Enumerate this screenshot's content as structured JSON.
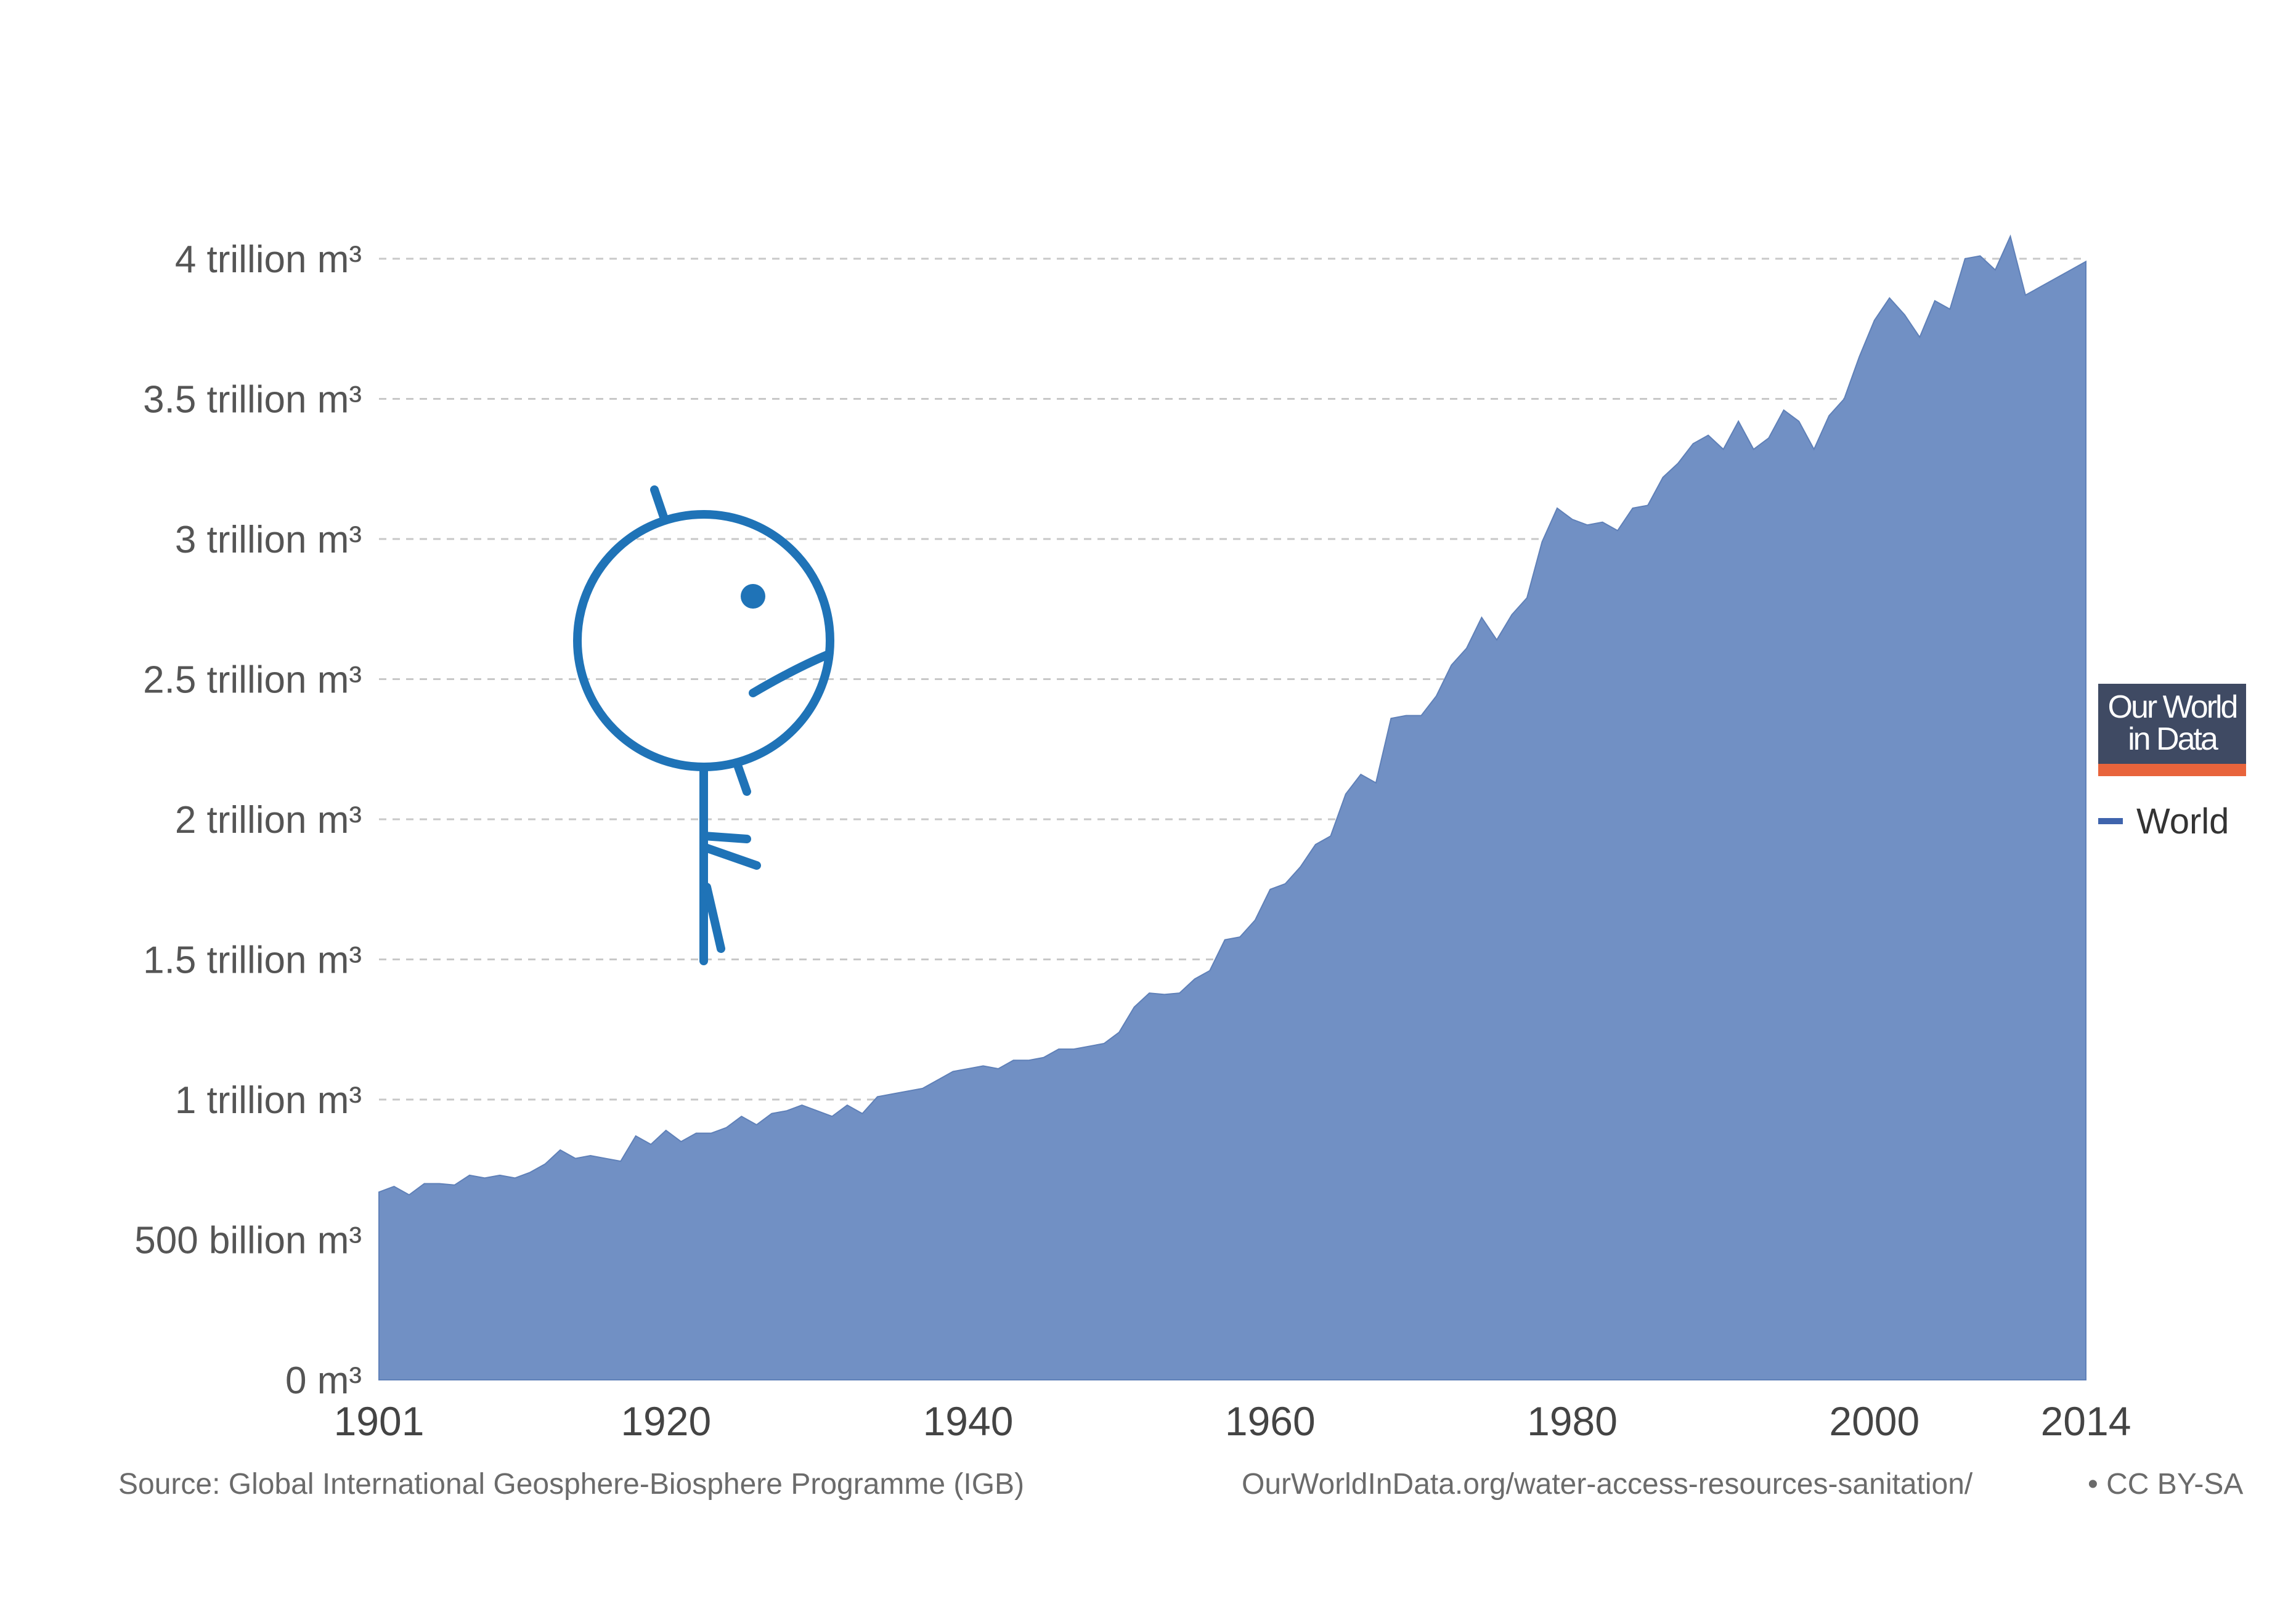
{
  "chart_data": {
    "type": "area",
    "title": "",
    "xlabel": "",
    "ylabel": "",
    "ylim": [
      0,
      4000000000000
    ],
    "xlim": [
      1901,
      2014
    ],
    "y_ticks": [
      {
        "value": 0,
        "label": "0 m³"
      },
      {
        "value": 500000000000,
        "label": "500 billion m³"
      },
      {
        "value": 1000000000000,
        "label": "1 trillion m³"
      },
      {
        "value": 1500000000000,
        "label": "1.5 trillion m³"
      },
      {
        "value": 2000000000000,
        "label": "2 trillion m³"
      },
      {
        "value": 2500000000000,
        "label": "2.5 trillion m³"
      },
      {
        "value": 3000000000000,
        "label": "3 trillion m³"
      },
      {
        "value": 3500000000000,
        "label": "3.5 trillion m³"
      },
      {
        "value": 4000000000000,
        "label": "4 trillion m³"
      }
    ],
    "x_ticks": [
      {
        "value": 1901,
        "label": "1901"
      },
      {
        "value": 1920,
        "label": "1920"
      },
      {
        "value": 1940,
        "label": "1940"
      },
      {
        "value": 1960,
        "label": "1960"
      },
      {
        "value": 1980,
        "label": "1980"
      },
      {
        "value": 2000,
        "label": "2000"
      },
      {
        "value": 2014,
        "label": "2014"
      }
    ],
    "grid": true,
    "legend_position": "right",
    "color": "#7190c4",
    "series": [
      {
        "name": "World",
        "x": [
          1901,
          1902,
          1903,
          1904,
          1905,
          1906,
          1907,
          1908,
          1909,
          1910,
          1911,
          1912,
          1913,
          1914,
          1915,
          1916,
          1917,
          1918,
          1919,
          1920,
          1921,
          1922,
          1923,
          1924,
          1925,
          1926,
          1927,
          1928,
          1929,
          1930,
          1931,
          1932,
          1933,
          1934,
          1935,
          1936,
          1937,
          1938,
          1939,
          1940,
          1941,
          1942,
          1943,
          1944,
          1945,
          1946,
          1947,
          1948,
          1949,
          1950,
          1951,
          1952,
          1953,
          1954,
          1955,
          1956,
          1957,
          1958,
          1959,
          1960,
          1961,
          1962,
          1963,
          1964,
          1965,
          1966,
          1967,
          1968,
          1969,
          1970,
          1971,
          1972,
          1973,
          1974,
          1975,
          1976,
          1977,
          1978,
          1979,
          1980,
          1981,
          1982,
          1983,
          1984,
          1985,
          1986,
          1987,
          1988,
          1989,
          1990,
          1991,
          1992,
          1993,
          1994,
          1995,
          1996,
          1997,
          1998,
          1999,
          2000,
          2001,
          2002,
          2003,
          2004,
          2005,
          2006,
          2007,
          2008,
          2009,
          2010,
          2011,
          2012,
          2013,
          2014
        ],
        "values": [
          670000000000,
          690000000000,
          660000000000,
          700000000000,
          700000000000,
          695000000000,
          730000000000,
          720000000000,
          730000000000,
          720000000000,
          740000000000,
          770000000000,
          820000000000,
          790000000000,
          800000000000,
          790000000000,
          780000000000,
          870000000000,
          840000000000,
          890000000000,
          850000000000,
          880000000000,
          880000000000,
          900000000000,
          940000000000,
          910000000000,
          950000000000,
          960000000000,
          980000000000,
          960000000000,
          940000000000,
          980000000000,
          950000000000,
          1010000000000,
          1020000000000,
          1030000000000,
          1040000000000,
          1070000000000,
          1100000000000,
          1110000000000,
          1120000000000,
          1110000000000,
          1140000000000,
          1140000000000,
          1150000000000,
          1180000000000,
          1180000000000,
          1190000000000,
          1200000000000,
          1240000000000,
          1330000000000,
          1380000000000,
          1375000000000,
          1380000000000,
          1430000000000,
          1460000000000,
          1570000000000,
          1580000000000,
          1640000000000,
          1750000000000,
          1770000000000,
          1830000000000,
          1910000000000,
          1940000000000,
          2090000000000,
          2160000000000,
          2130000000000,
          2360000000000,
          2370000000000,
          2370000000000,
          2440000000000,
          2550000000000,
          2610000000000,
          2720000000000,
          2640000000000,
          2730000000000,
          2790000000000,
          2990000000000,
          3110000000000,
          3070000000000,
          3050000000000,
          3060000000000,
          3030000000000,
          3110000000000,
          3120000000000,
          3220000000000,
          3270000000000,
          3340000000000,
          3370000000000,
          3320000000000,
          3420000000000,
          3320000000000,
          3360000000000,
          3460000000000,
          3420000000000,
          3320000000000,
          3440000000000,
          3500000000000,
          3650000000000,
          3780000000000,
          3860000000000,
          3800000000000,
          3720000000000,
          3850000000000,
          3820000000000,
          4000000000000,
          4010000000000,
          3960000000000,
          4080000000000,
          3870000000000,
          3900000000000,
          3930000000000,
          3960000000000,
          3990000000000
        ]
      }
    ]
  },
  "footer": {
    "source": "Source: Global International Geosphere-Biosphere Programme (IGB)",
    "url": "OurWorldInData.org/water-access-resources-sanitation/",
    "license": "• CC BY-SA"
  },
  "logo": {
    "line1": "Our World",
    "line2": "in Data",
    "bg_color": "#3f4a63",
    "bar_color": "#e8643c"
  },
  "legend": {
    "label": "World",
    "color": "#3f64ad"
  },
  "mascot": {
    "icon": "stick-figure-icon",
    "color": "#1f73b7"
  }
}
